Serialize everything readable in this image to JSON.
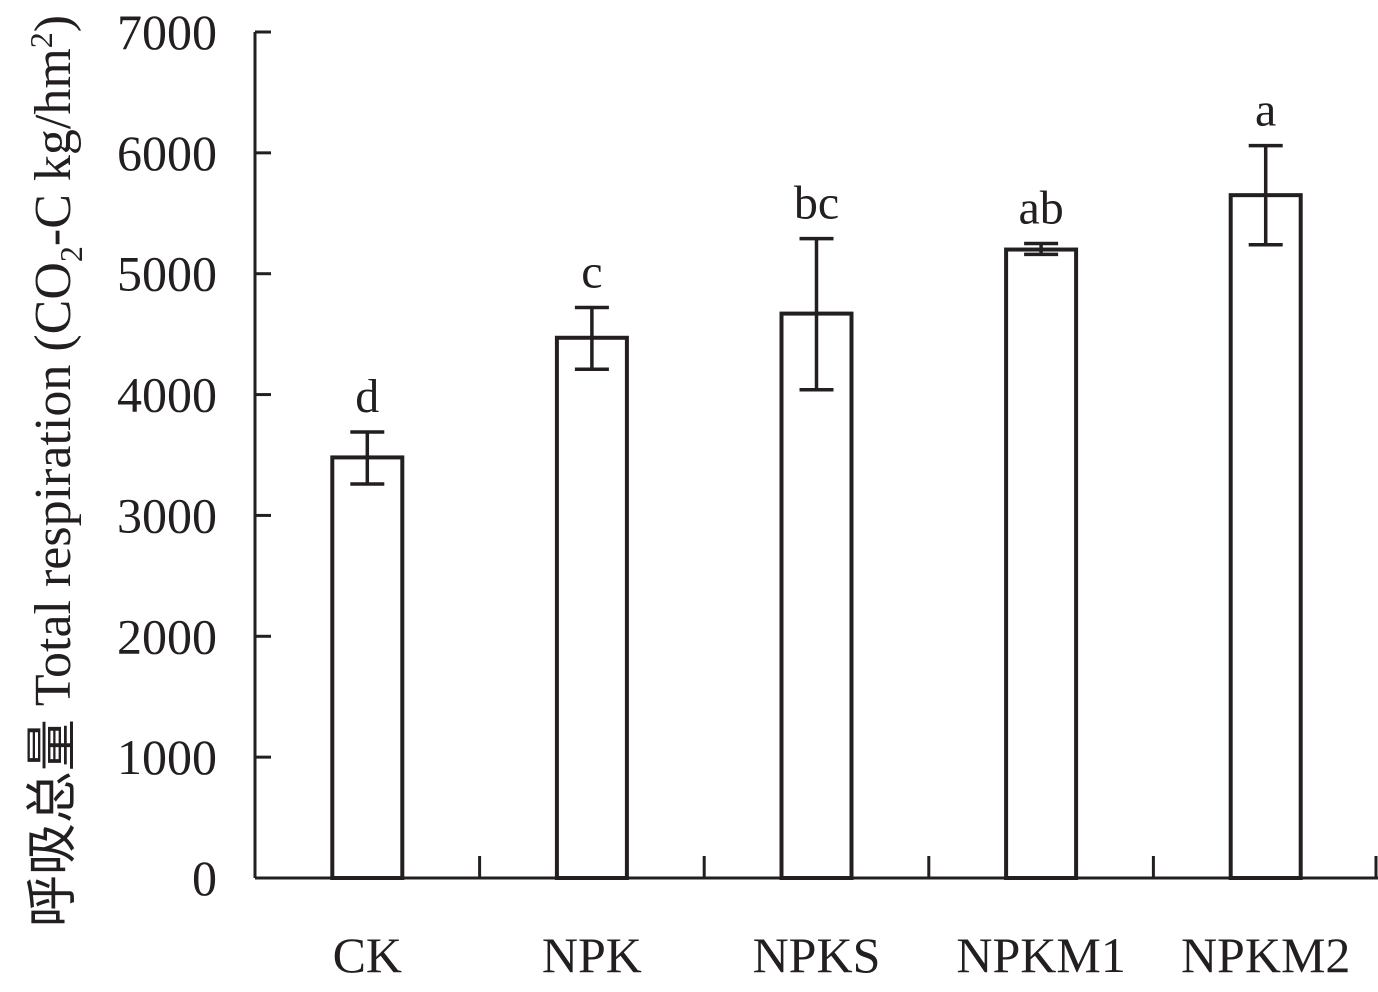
{
  "chart_data": {
    "type": "bar",
    "ylabel": "呼吸总量 Total respiration (CO2-C kg/hm2)",
    "ylabel_parts": {
      "prefix": "呼吸总量 Total respiration (CO",
      "sub": "2",
      "middle": "-C kg/hm",
      "sup": "2",
      "suffix": ")"
    },
    "ylim": [
      0,
      7000
    ],
    "yticks": [
      0,
      1000,
      2000,
      3000,
      4000,
      5000,
      6000,
      7000
    ],
    "categories": [
      "CK",
      "NPK",
      "NPKS",
      "NPKM1",
      "NPKM2"
    ],
    "values": [
      3480,
      4470,
      4670,
      5200,
      5650
    ],
    "error_low": [
      3260,
      4210,
      4040,
      5160,
      5240
    ],
    "error_high": [
      3690,
      4720,
      5290,
      5250,
      6060
    ],
    "significance": [
      "d",
      "c",
      "bc",
      "ab",
      "a"
    ],
    "grid": false,
    "colors": {
      "bar_fill": "#ffffff",
      "stroke": "#231f20"
    }
  }
}
